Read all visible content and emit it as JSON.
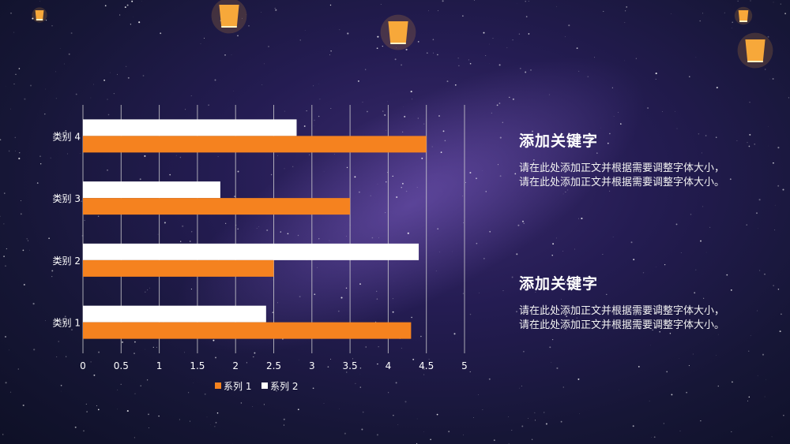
{
  "chart_data": {
    "type": "bar",
    "orientation": "horizontal",
    "categories": [
      "类别 1",
      "类别 2",
      "类别 3",
      "类别 4"
    ],
    "series": [
      {
        "name": "系列 1",
        "color": "#f5821f",
        "values": [
          4.3,
          2.5,
          3.5,
          4.5
        ]
      },
      {
        "name": "系列 2",
        "color": "#ffffff",
        "values": [
          2.4,
          4.4,
          1.8,
          2.8
        ]
      }
    ],
    "xlim": [
      0,
      5
    ],
    "xticks": [
      "0",
      "0.5",
      "1",
      "1.5",
      "2",
      "2.5",
      "3",
      "3.5",
      "4",
      "4.5",
      "5"
    ],
    "grid": true,
    "legend_position": "bottom"
  },
  "blocks": [
    {
      "title": "添加关键字",
      "body": "请在此处添加正文并根据需要调整字体大小，请在此处添加正文并根据需要调整字体大小。"
    },
    {
      "title": "添加关键字",
      "body": "请在此处添加正文并根据需要调整字体大小，请在此处添加正文并根据需要调整字体大小。"
    }
  ],
  "decor": {
    "icon": "sky-lantern-icon",
    "lantern_color": "#f7a83a"
  }
}
